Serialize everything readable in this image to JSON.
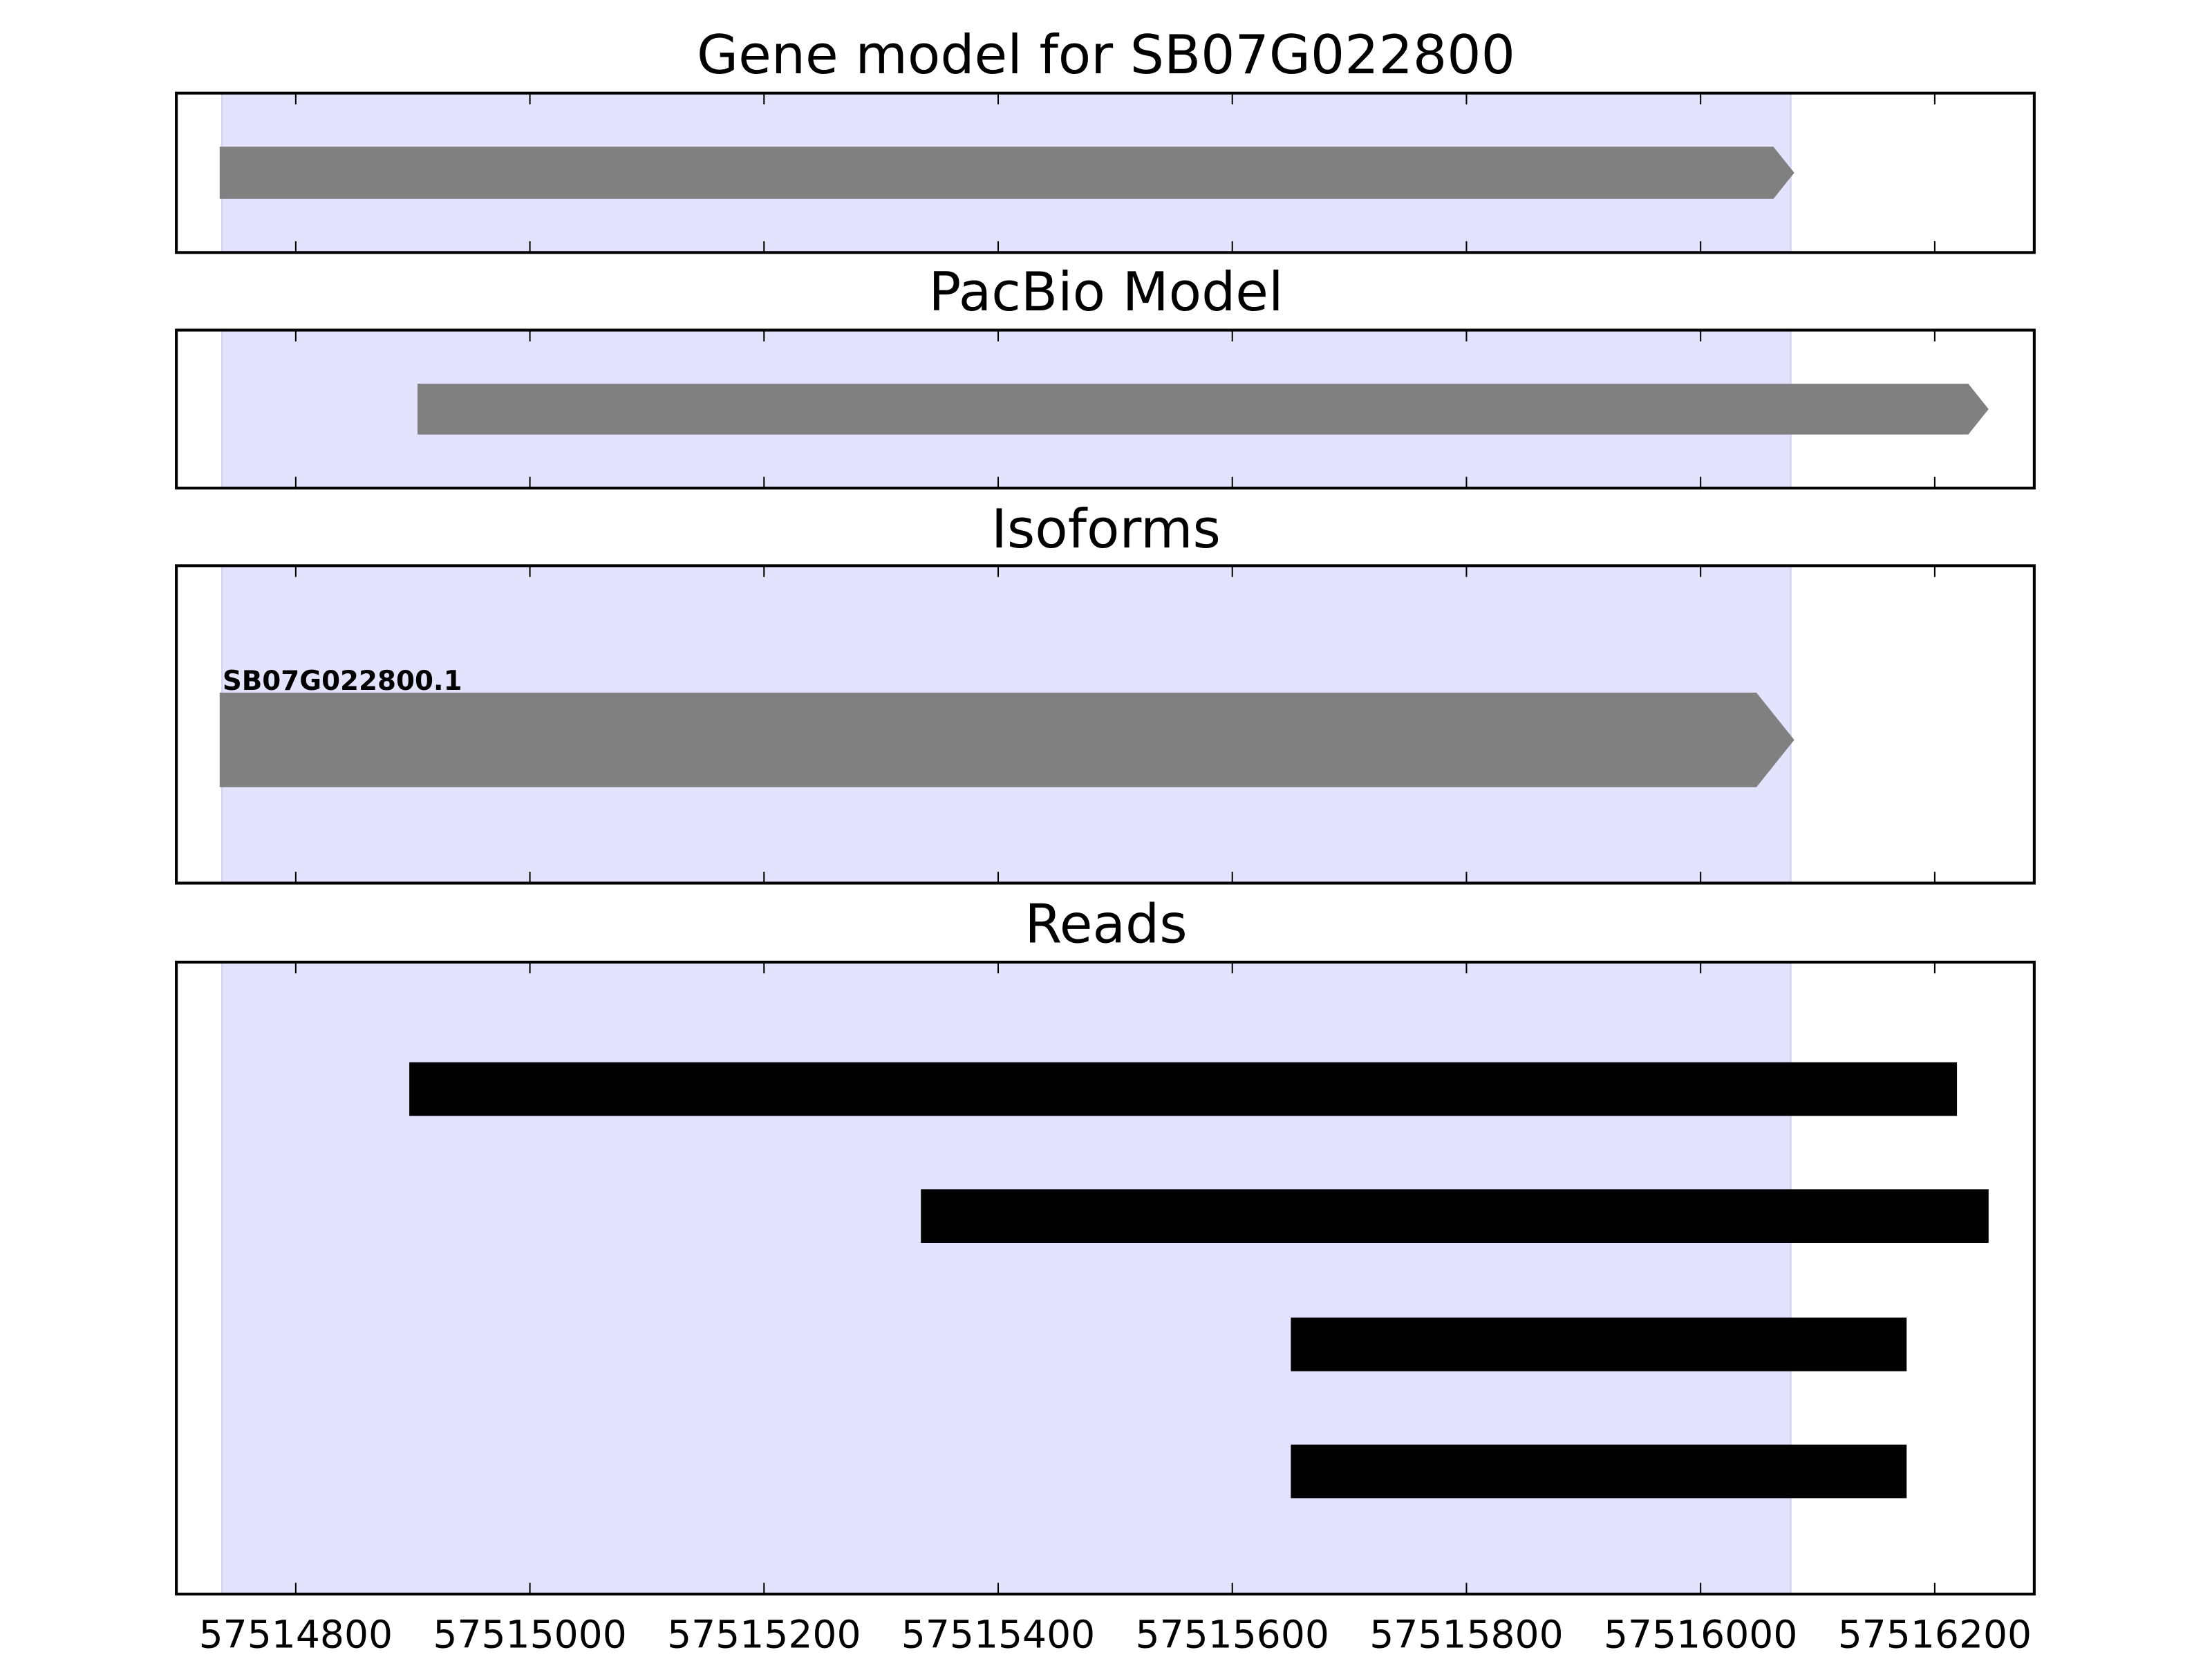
{
  "chart_data": {
    "type": "gene-track",
    "xlim": [
      57514698,
      57516285
    ],
    "x_ticks": [
      57514800,
      57515000,
      57515200,
      57515400,
      57515600,
      57515800,
      57516000,
      57516200
    ],
    "x_tick_labels": [
      "57514800",
      "57515000",
      "57515200",
      "57515400",
      "57515600",
      "57515800",
      "57516000",
      "57516200"
    ],
    "highlight_region": [
      57514737,
      57516077
    ],
    "colors": {
      "highlight": "#e3e3fe",
      "feature": "#808080",
      "read": "#000000"
    },
    "panels": [
      {
        "title": "Gene model for SB07G022800",
        "features": [
          {
            "start": 57514735,
            "end": 57516080,
            "strand": "+"
          }
        ]
      },
      {
        "title": "PacBio Model",
        "features": [
          {
            "start": 57514904,
            "end": 57516246,
            "strand": "+"
          }
        ]
      },
      {
        "title": "Isoforms",
        "features": [
          {
            "label": "SB07G022800.1",
            "start": 57514735,
            "end": 57516080,
            "strand": "+"
          }
        ]
      },
      {
        "title": "Reads",
        "features": [
          {
            "start": 57514897,
            "end": 57516219
          },
          {
            "start": 57515334,
            "end": 57516246
          },
          {
            "start": 57515650,
            "end": 57516176
          },
          {
            "start": 57515650,
            "end": 57516176
          }
        ]
      }
    ]
  }
}
